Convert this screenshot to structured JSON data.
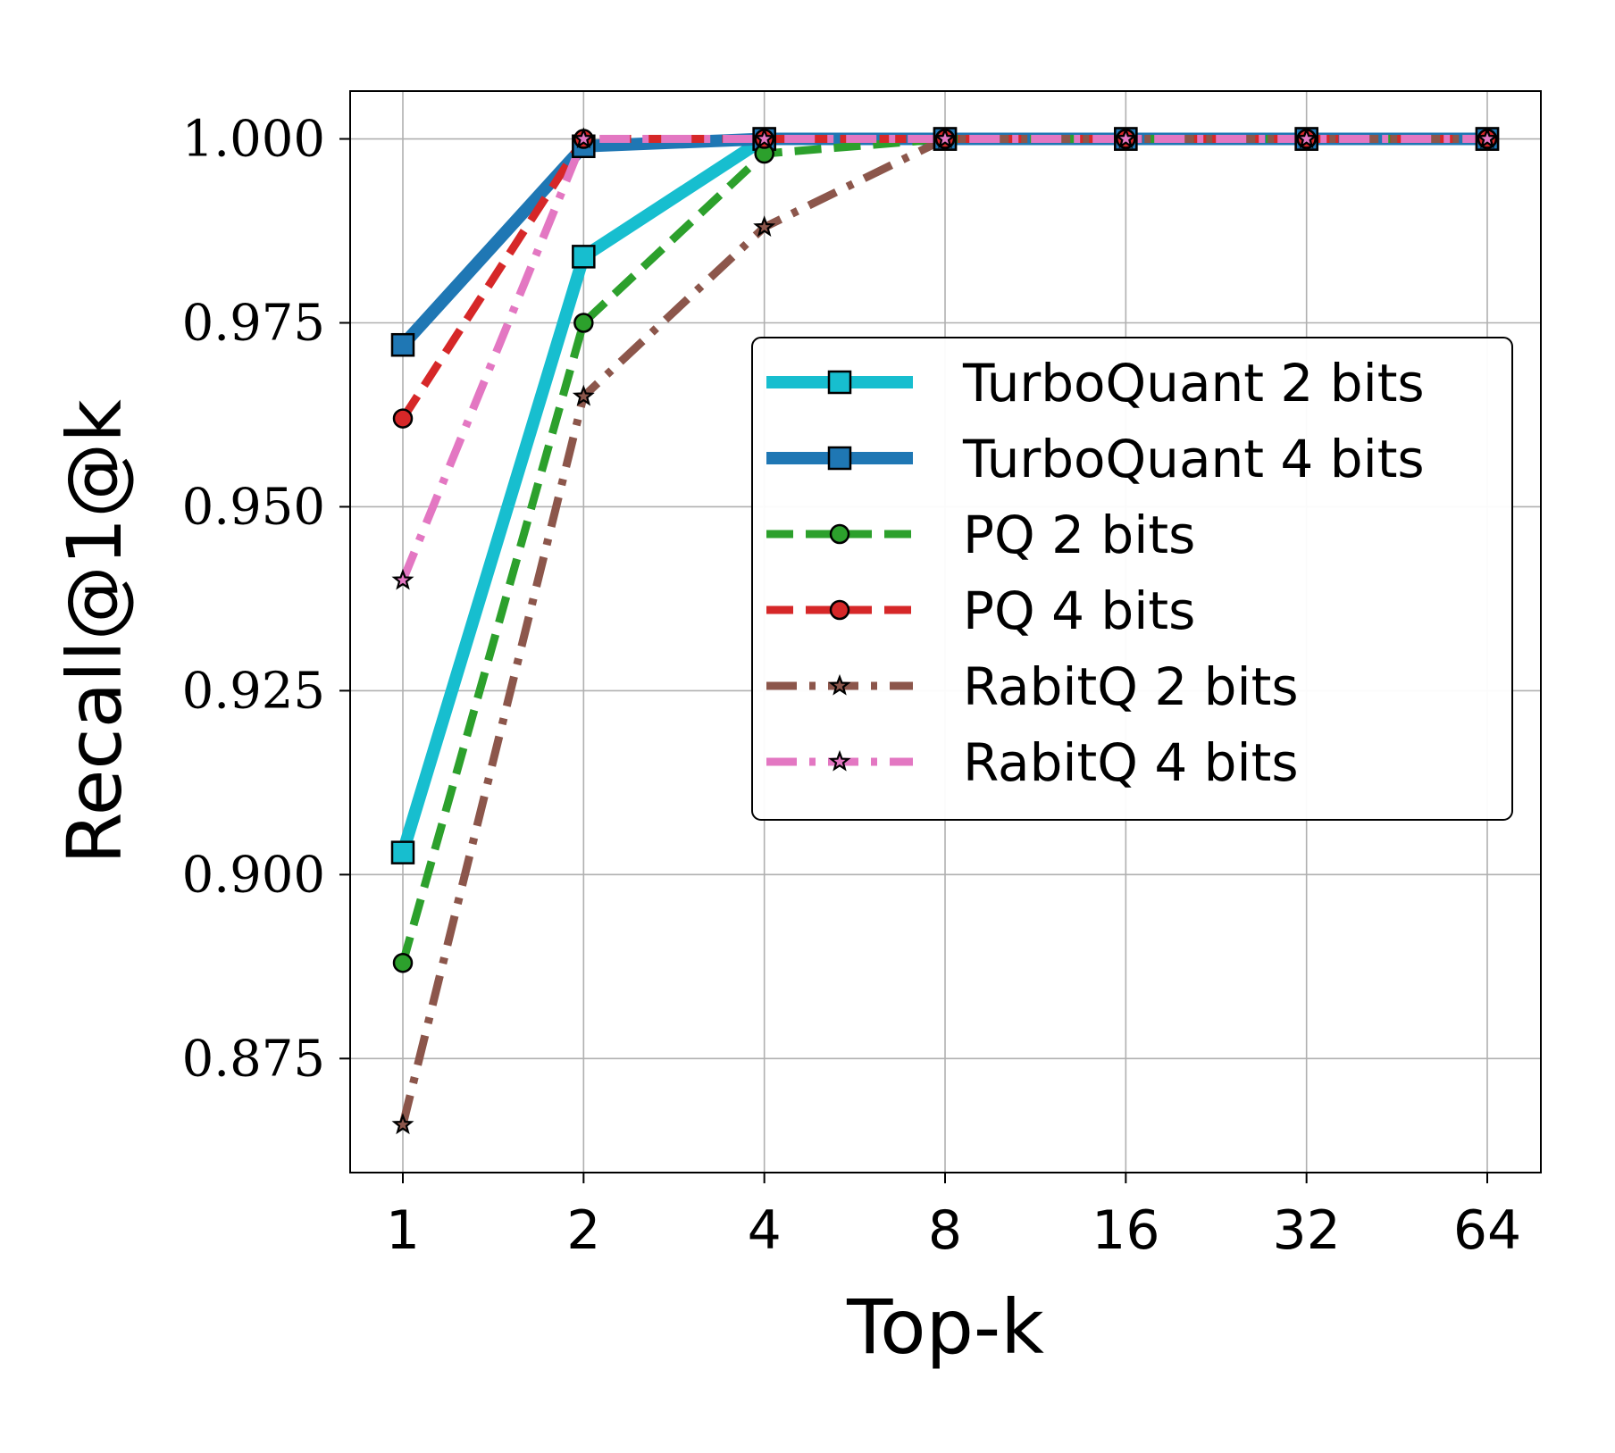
{
  "chart_data": {
    "type": "line",
    "xlabel": "Top-k",
    "ylabel": "Recall@1@k",
    "x": [
      1,
      2,
      4,
      8,
      16,
      32,
      64
    ],
    "x_tick_labels": [
      "1",
      "2",
      "4",
      "8",
      "16",
      "32",
      "64"
    ],
    "x_scale": "log2",
    "y_ticks": [
      0.875,
      0.9,
      0.925,
      0.95,
      0.975,
      1.0
    ],
    "y_tick_labels": [
      "0.875",
      "0.900",
      "0.925",
      "0.950",
      "0.975",
      "1.000"
    ],
    "ylim": [
      0.8595,
      1.0065
    ],
    "grid": true,
    "legend_position": "center-right",
    "series": [
      {
        "name": "TurboQuant 2 bits",
        "values": [
          0.903,
          0.984,
          1.0,
          1.0,
          1.0,
          1.0,
          1.0
        ],
        "color": "#17becf",
        "line_style": "solid",
        "marker": "square"
      },
      {
        "name": "TurboQuant 4 bits",
        "values": [
          0.972,
          0.999,
          1.0,
          1.0,
          1.0,
          1.0,
          1.0
        ],
        "color": "#1f77b4",
        "line_style": "solid",
        "marker": "square"
      },
      {
        "name": "PQ 2 bits",
        "values": [
          0.888,
          0.975,
          0.998,
          1.0,
          1.0,
          1.0,
          1.0
        ],
        "color": "#2ca02c",
        "line_style": "dashed",
        "marker": "circle"
      },
      {
        "name": "PQ 4 bits",
        "values": [
          0.962,
          1.0,
          1.0,
          1.0,
          1.0,
          1.0,
          1.0
        ],
        "color": "#d62728",
        "line_style": "dashed",
        "marker": "circle"
      },
      {
        "name": "RabitQ 2 bits",
        "values": [
          0.866,
          0.965,
          0.988,
          1.0,
          1.0,
          1.0,
          1.0
        ],
        "color": "#8c564b",
        "line_style": "dashdot",
        "marker": "star"
      },
      {
        "name": "RabitQ 4 bits",
        "values": [
          0.94,
          1.0,
          1.0,
          1.0,
          1.0,
          1.0,
          1.0
        ],
        "color": "#e377c2",
        "line_style": "dashdot",
        "marker": "star"
      }
    ]
  }
}
